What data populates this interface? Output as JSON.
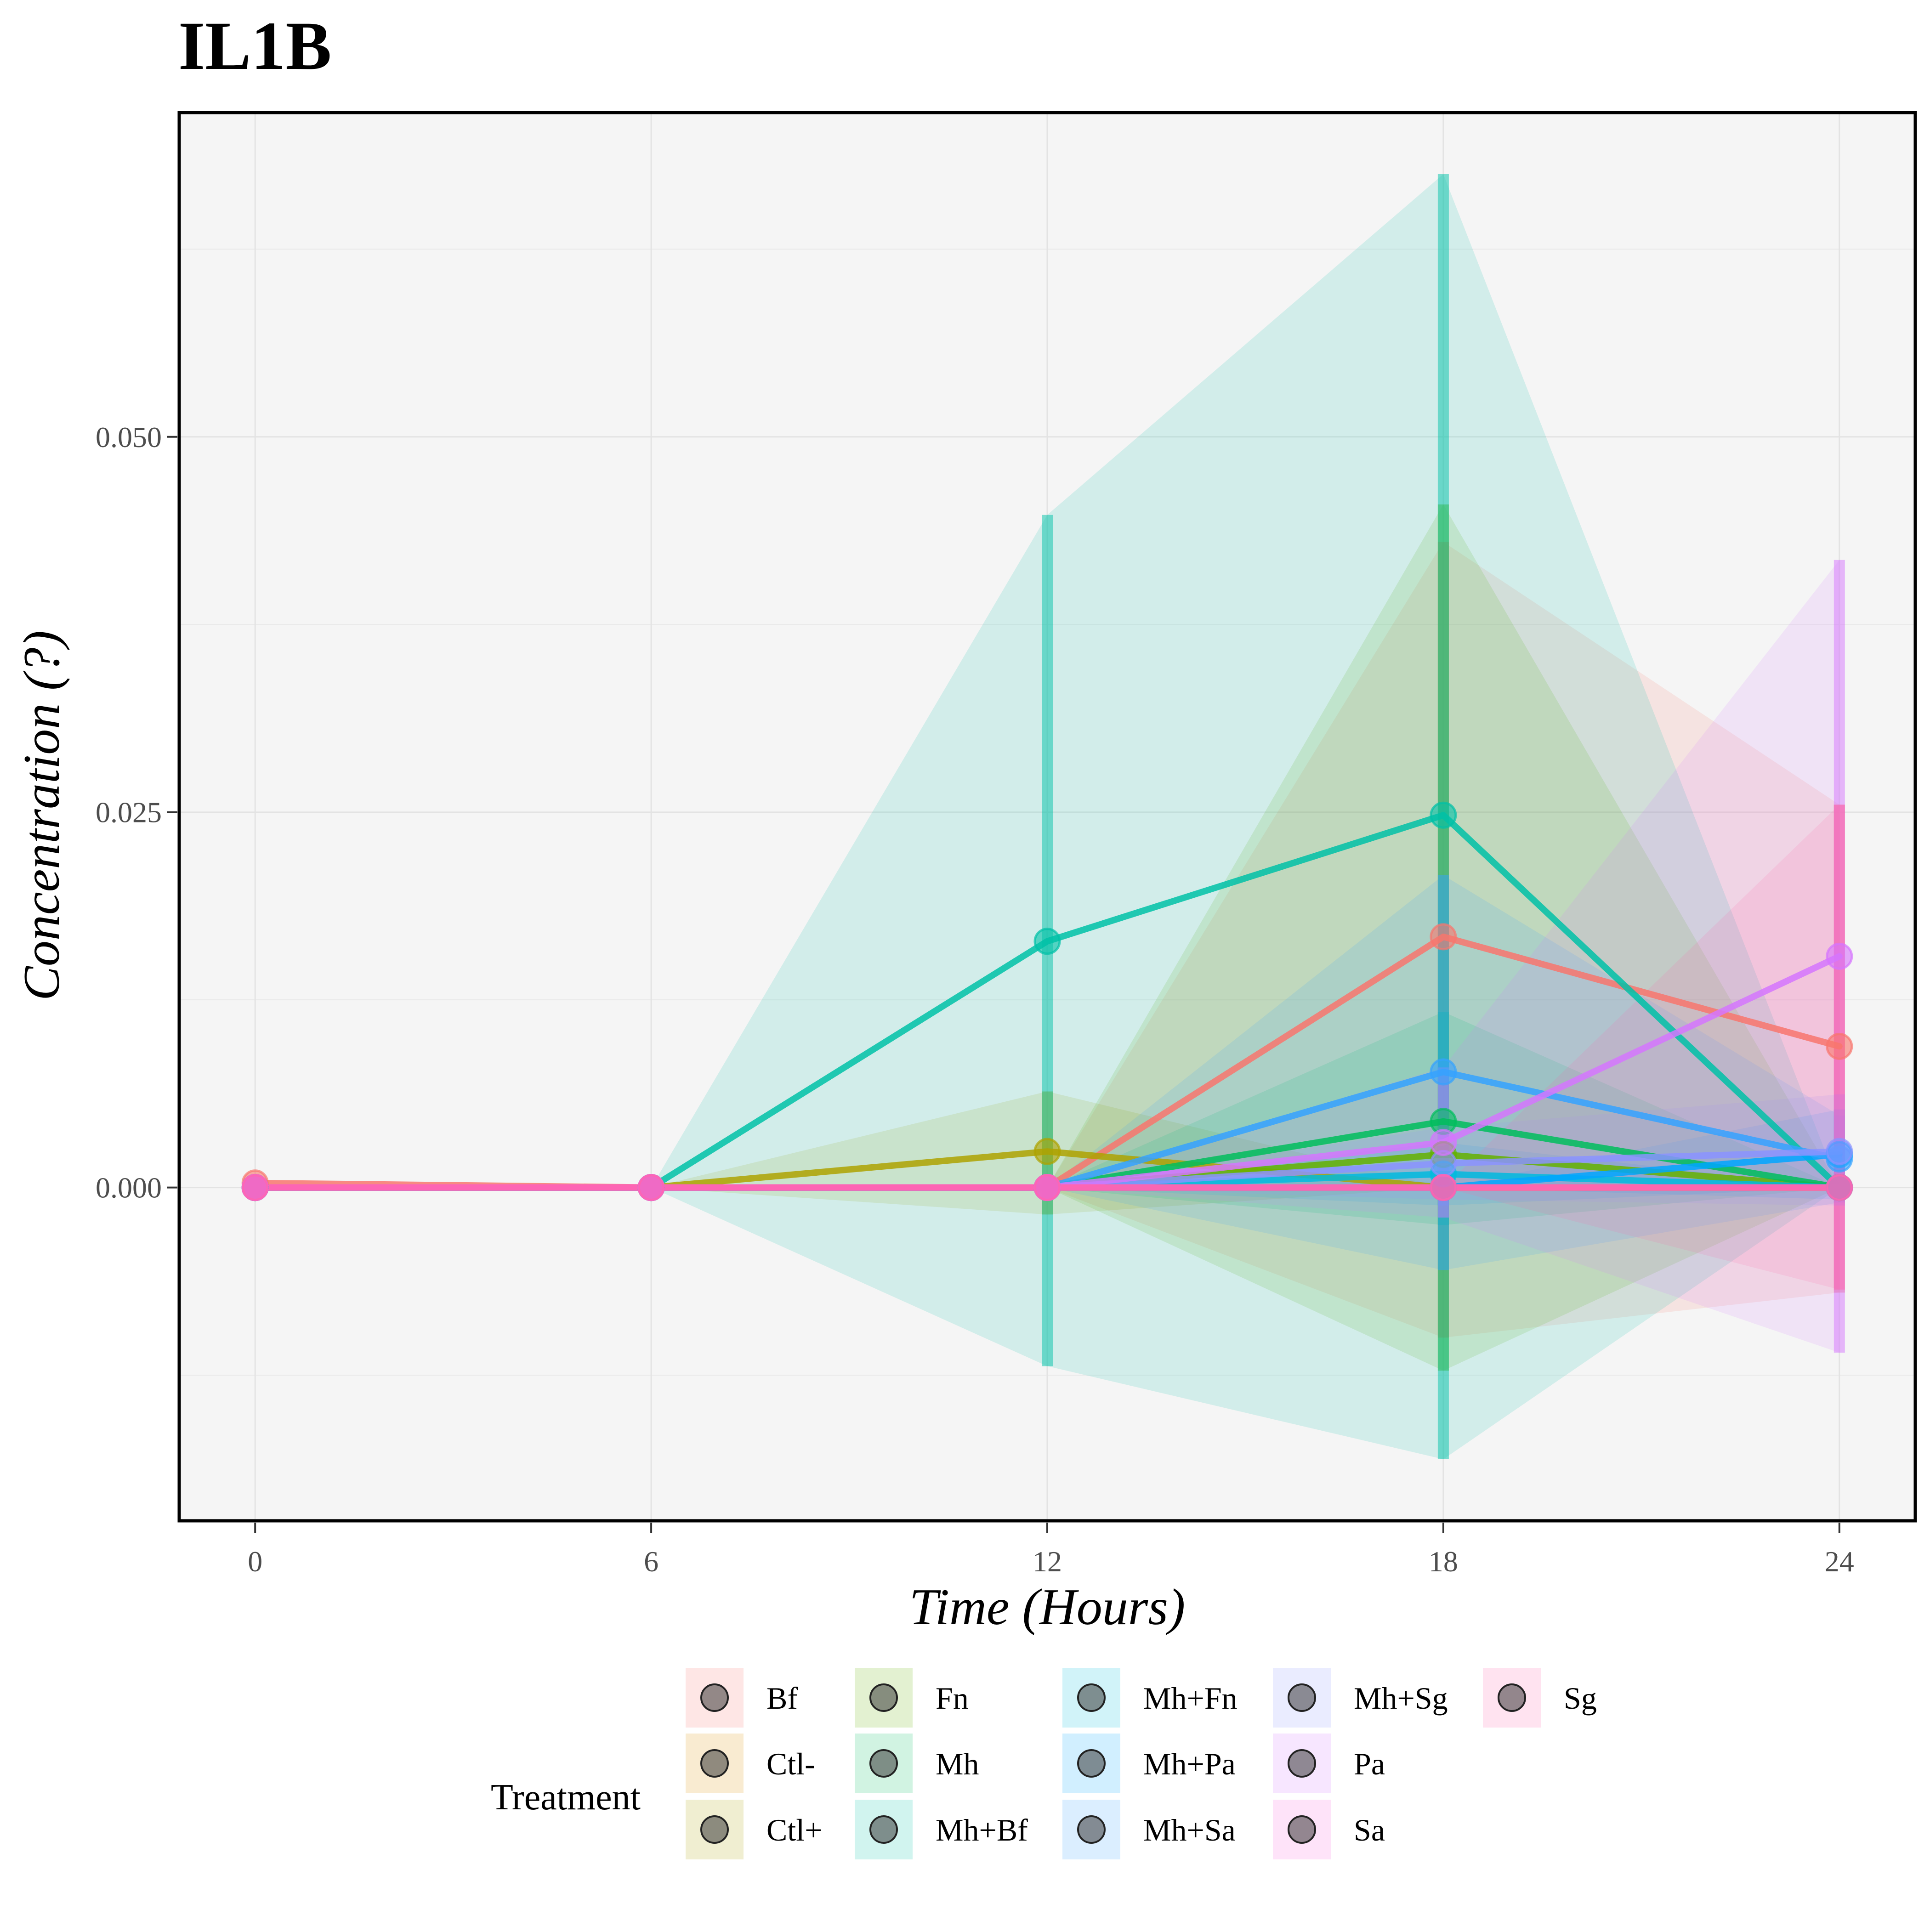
{
  "chart_data": {
    "type": "line",
    "title": "IL1B",
    "xlabel": "Time (Hours)",
    "ylabel": "Concentration (?)",
    "x": [
      0,
      6,
      12,
      18,
      24
    ],
    "x_ticks": [
      "0",
      "6",
      "12",
      "18",
      "24"
    ],
    "xlim": [
      -1.15,
      25.15
    ],
    "y_ticks": [
      {
        "value": 0.0,
        "label": "0.000"
      },
      {
        "value": 0.025,
        "label": "0.025"
      },
      {
        "value": 0.05,
        "label": "0.050"
      }
    ],
    "y_minor_ticks": [
      -0.0125,
      0.0125,
      0.0375,
      0.0625
    ],
    "ylim": [
      -0.0222,
      0.0716
    ],
    "grid": true,
    "legend": {
      "title": "Treatment",
      "position": "bottom",
      "ncol": 5
    },
    "error_bars": true,
    "ribbons": true,
    "series": [
      {
        "name": "Bf",
        "color": "#F8766D",
        "values": [
          0.0003,
          0.0,
          0.0,
          0.0167,
          0.0094
        ],
        "lower": [
          0.0003,
          0.0,
          0.0,
          -0.01,
          -0.007
        ],
        "upper": [
          0.0003,
          0.0,
          0.0,
          0.043,
          0.0255
        ]
      },
      {
        "name": "Ctl-",
        "color": "#DB8E00",
        "values": [
          0.0,
          0.0,
          0.0,
          0.0,
          0.0
        ],
        "lower": [
          0.0,
          0.0,
          0.0,
          0.0,
          0.0
        ],
        "upper": [
          0.0,
          0.0,
          0.0,
          0.0,
          0.0
        ]
      },
      {
        "name": "Ctl+",
        "color": "#AEA200",
        "values": [
          0.0,
          0.0,
          0.0024,
          0.0,
          0.0
        ],
        "lower": [
          0.0,
          0.0,
          -0.0018,
          0.0,
          0.0
        ],
        "upper": [
          0.0,
          0.0,
          0.0064,
          0.0,
          0.0
        ]
      },
      {
        "name": "Fn",
        "color": "#64B200",
        "values": [
          0.0,
          0.0,
          0.0,
          0.0022,
          0.0
        ],
        "lower": [
          0.0,
          0.0,
          0.0,
          -0.0122,
          0.0
        ],
        "upper": [
          0.0,
          0.0,
          0.0,
          0.0455,
          0.0
        ]
      },
      {
        "name": "Mh",
        "color": "#00BD5C",
        "values": [
          0.0,
          0.0,
          0.0,
          0.0044,
          0.0
        ],
        "lower": [
          0.0,
          0.0,
          0.0,
          -0.0025,
          0.0
        ],
        "upper": [
          0.0,
          0.0,
          0.0,
          0.0117,
          0.0
        ]
      },
      {
        "name": "Mh+Bf",
        "color": "#00C1A7",
        "values": [
          0.0,
          0.0,
          0.0164,
          0.0248,
          0.0
        ],
        "lower": [
          0.0,
          0.0,
          -0.0119,
          -0.0181,
          0.0
        ],
        "upper": [
          0.0,
          0.0,
          0.0448,
          0.0675,
          0.0
        ]
      },
      {
        "name": "Mh+Fn",
        "color": "#00BADE",
        "values": [
          0.0,
          0.0,
          0.0,
          0.0009,
          0.0
        ],
        "lower": [
          0.0,
          0.0,
          0.0,
          -0.0012,
          0.0
        ],
        "upper": [
          0.0,
          0.0,
          0.0,
          0.003,
          0.0
        ]
      },
      {
        "name": "Mh+Pa",
        "color": "#00A6FF",
        "values": [
          0.0,
          0.0,
          0.0,
          0.0,
          0.0022
        ],
        "lower": [
          0.0,
          0.0,
          0.0,
          0.0,
          -0.0008
        ],
        "upper": [
          0.0,
          0.0,
          0.0,
          0.0,
          0.0052
        ]
      },
      {
        "name": "Mh+Sa",
        "color": "#35A2FF",
        "values": [
          0.0,
          0.0,
          0.0,
          0.0077,
          0.0019
        ],
        "lower": [
          0.0,
          0.0,
          0.0,
          -0.0055,
          -0.001
        ],
        "upper": [
          0.0,
          0.0,
          0.0,
          0.0208,
          0.0048
        ]
      },
      {
        "name": "Mh+Sg",
        "color": "#8B93FF",
        "values": [
          0.0,
          0.0,
          0.0,
          0.0016,
          0.0024
        ],
        "lower": [
          0.0,
          0.0,
          0.0,
          -0.0008,
          -0.0012
        ],
        "upper": [
          0.0,
          0.0,
          0.0,
          0.004,
          0.0062
        ]
      },
      {
        "name": "Pa",
        "color": "#D575FE",
        "values": [
          0.0,
          0.0,
          0.0,
          0.003,
          0.0154
        ],
        "lower": [
          0.0,
          0.0,
          0.0,
          -0.002,
          -0.011
        ],
        "upper": [
          0.0,
          0.0,
          0.0,
          0.008,
          0.0418
        ]
      },
      {
        "name": "Sa",
        "color": "#F962DD",
        "values": [
          0.0,
          0.0,
          0.0,
          0.0,
          0.0
        ],
        "lower": [
          0.0,
          0.0,
          0.0,
          0.0,
          0.0
        ],
        "upper": [
          0.0,
          0.0,
          0.0,
          0.0,
          0.0
        ]
      },
      {
        "name": "Sg",
        "color": "#FF65AC",
        "values": [
          0.0,
          0.0,
          0.0,
          0.0,
          0.0
        ],
        "lower": [
          0.0,
          0.0,
          0.0,
          0.0,
          -0.0068
        ],
        "upper": [
          0.0,
          0.0,
          0.0,
          0.0,
          0.0255
        ]
      }
    ]
  }
}
